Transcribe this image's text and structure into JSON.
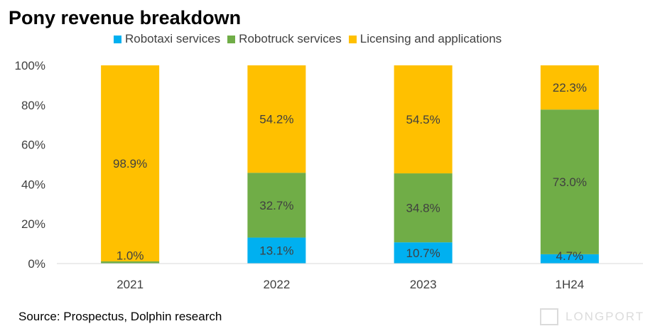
{
  "title": "Pony revenue breakdown",
  "source": "Source: Prospectus, Dolphin research",
  "watermark_text": "LONGPORT",
  "legend": [
    {
      "label": "Robotaxi services",
      "color": "#00B0F0"
    },
    {
      "label": "Robotruck services",
      "color": "#70AD47"
    },
    {
      "label": "Licensing and applications",
      "color": "#FFC000"
    }
  ],
  "chart_data": {
    "type": "bar",
    "stacked": true,
    "title": "Pony revenue breakdown",
    "categories": [
      "2021",
      "2022",
      "2023",
      "1H24"
    ],
    "series": [
      {
        "name": "Robotaxi services",
        "color": "#00B0F0",
        "values": [
          0.1,
          13.1,
          10.7,
          4.7
        ],
        "labels": [
          "",
          "13.1%",
          "10.7%",
          "4.7%"
        ]
      },
      {
        "name": "Robotruck services",
        "color": "#70AD47",
        "values": [
          1.0,
          32.7,
          34.8,
          73.0
        ],
        "labels": [
          "1.0%",
          "32.7%",
          "34.8%",
          "73.0%"
        ]
      },
      {
        "name": "Licensing and applications",
        "color": "#FFC000",
        "values": [
          98.9,
          54.2,
          54.5,
          22.3
        ],
        "labels": [
          "98.9%",
          "54.2%",
          "54.5%",
          "22.3%"
        ]
      }
    ],
    "yticks": [
      "0%",
      "20%",
      "40%",
      "60%",
      "80%",
      "100%"
    ],
    "ylim": [
      0,
      100
    ],
    "grid": false,
    "legend_position": "top"
  }
}
